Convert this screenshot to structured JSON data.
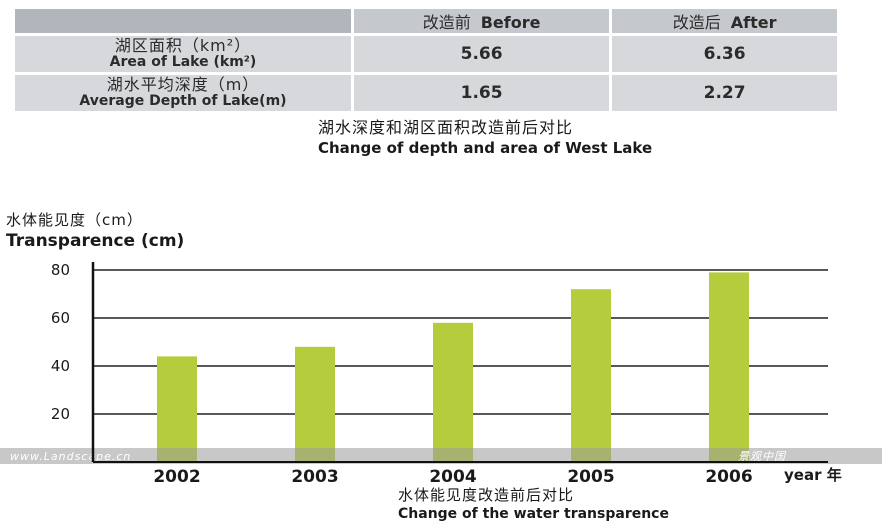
{
  "table": {
    "header": {
      "before_cn": "改造前",
      "before_en": "Before",
      "after_cn": "改造后",
      "after_en": "After"
    },
    "rows": [
      {
        "label_cn": "湖区面积（km²）",
        "label_en": "Area of Lake (km²)",
        "before": "5.66",
        "after": "6.36"
      },
      {
        "label_cn": "湖水平均深度（m）",
        "label_en": "Average Depth of Lake(m)",
        "before": "1.65",
        "after": "2.27"
      }
    ],
    "caption_cn": "湖水深度和湖区面积改造前后对比",
    "caption_en": "Change of depth and area of West Lake"
  },
  "chart_data": {
    "type": "bar",
    "ytitle_cn": "水体能见度（cm）",
    "ytitle_en": "Transparence (cm)",
    "categories": [
      "2002",
      "2003",
      "2004",
      "2005",
      "2006"
    ],
    "values": [
      44,
      48,
      58,
      72,
      79
    ],
    "ylim": [
      0,
      80
    ],
    "yticks": [
      20,
      40,
      60,
      80
    ],
    "x_unit": "year 年",
    "grid": true,
    "bar_color": "#b5cc3c",
    "caption_cn": "水体能见度改造前后对比",
    "caption_en": "Change of the water transparence"
  },
  "watermark": {
    "left_text": "www.Landscape.cn",
    "right_text": "景观中国"
  }
}
